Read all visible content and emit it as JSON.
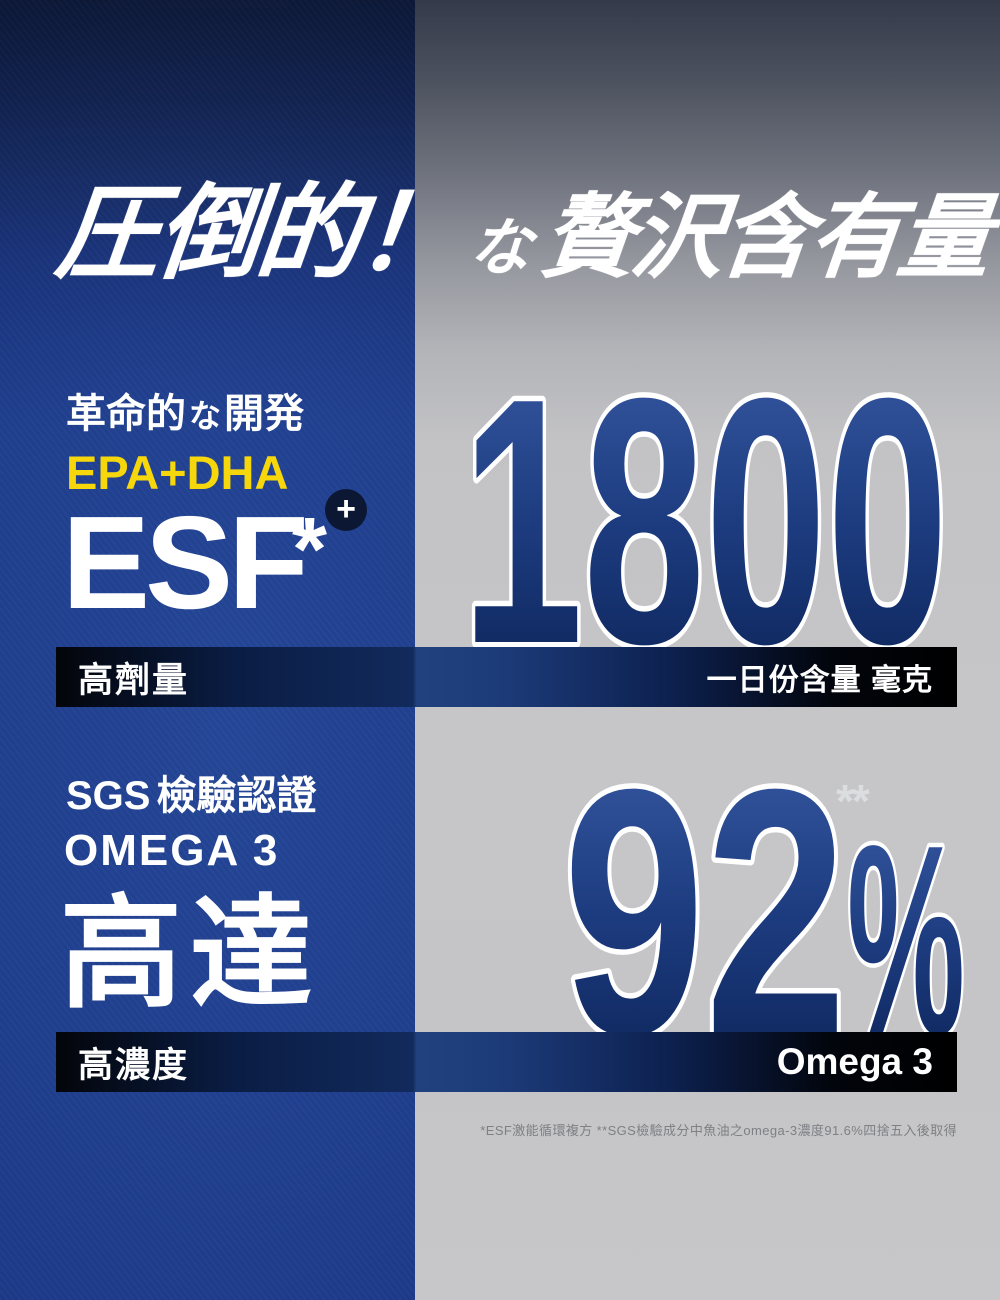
{
  "headline": {
    "part1": "圧倒的！",
    "part2": "な",
    "part3": "贅沢含有量"
  },
  "feature1": {
    "subtitle": {
      "a": "革命的",
      "b": "な",
      "c": "開発"
    },
    "epa_dha": "EPA+DHA",
    "esf": "ESF",
    "esf_asterisk": "*",
    "plus": "+",
    "value": "1800",
    "bar_left": "高劑量",
    "bar_right": "一日份含量 毫克"
  },
  "feature2": {
    "sgs_latin": "SGS",
    "sgs_cjk": "檢驗認證",
    "omega": "OMEGA 3",
    "up_to": "高達",
    "value": "92",
    "percent": "%",
    "asterisks": "**",
    "bar_left": "高濃度",
    "bar_right": "Omega 3"
  },
  "footnote": "*ESF激能循環複方 **SGS檢驗成分中魚油之omega-3濃度91.6%四捨五入後取得",
  "colors": {
    "blue_background": "#1d3f94",
    "navy_dark": "#0c1833",
    "yellow_accent": "#f6d70c",
    "number_gradient_top": "#3a5ca6",
    "number_gradient_bottom": "#0a2154",
    "gray_background": "#c5c5c7",
    "bar_black": "#000000",
    "text_white": "#ffffff"
  }
}
